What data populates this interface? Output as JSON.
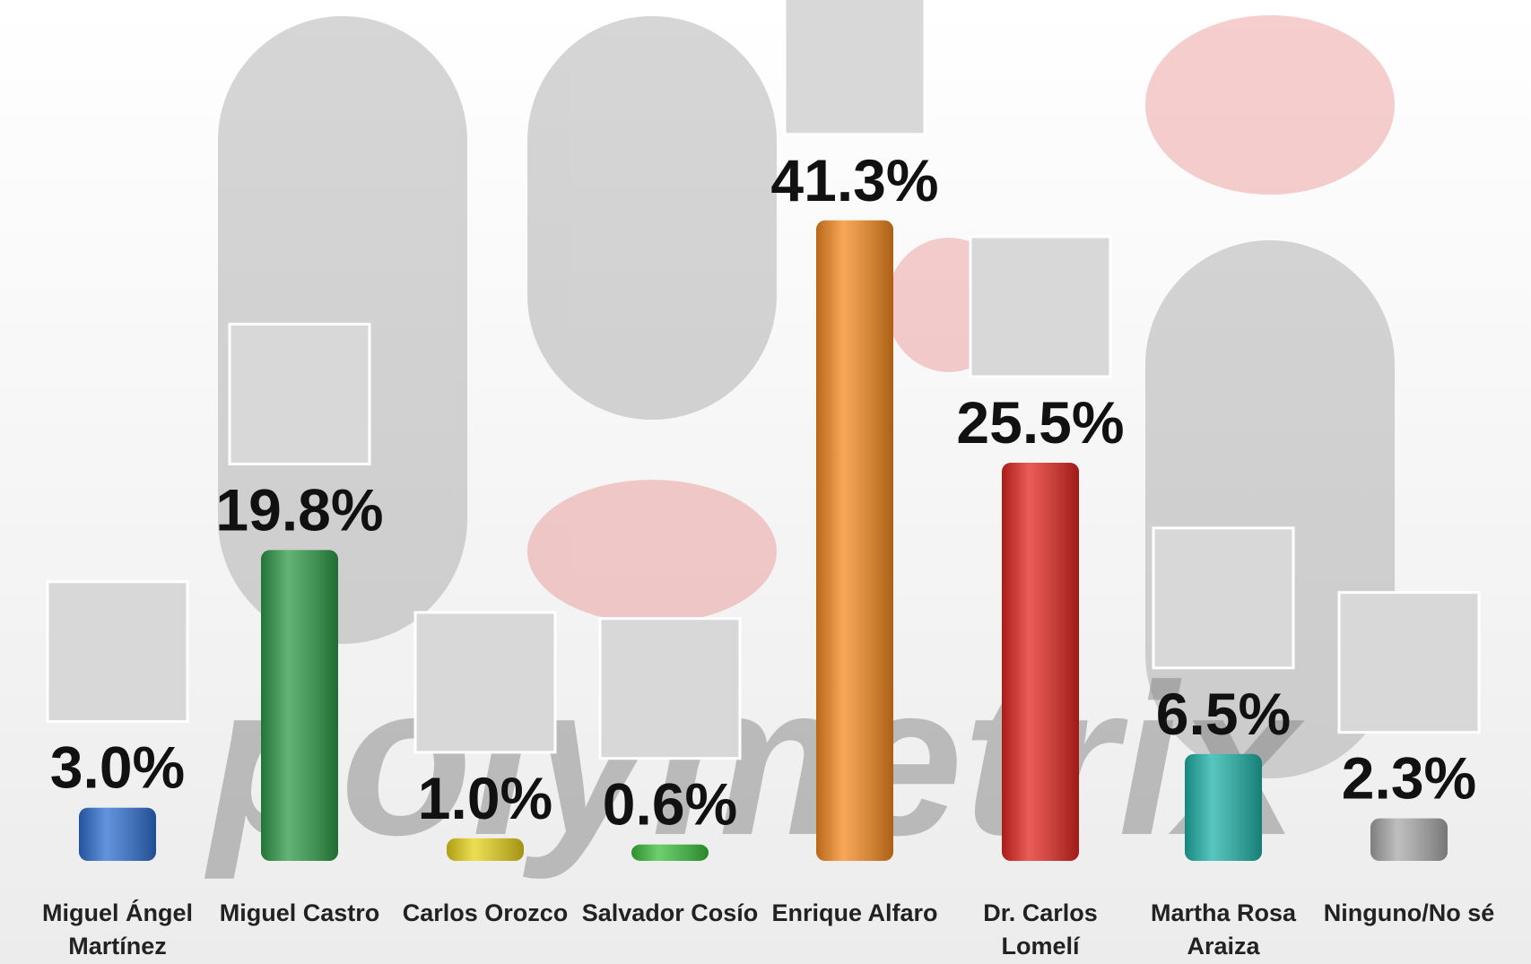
{
  "chart_data": {
    "type": "bar",
    "watermark": "polymetrix",
    "categories": [
      "Miguel Ángel Martínez",
      "Miguel Castro",
      "Carlos Orozco",
      "Salvador Cosío",
      "Enrique Alfaro",
      "Dr. Carlos Lomelí",
      "Martha Rosa Araiza",
      "Ninguno/No sé"
    ],
    "values": [
      3.0,
      19.8,
      1.0,
      0.6,
      41.3,
      25.5,
      6.5,
      2.3
    ],
    "value_labels": [
      "3.0%",
      "19.8%",
      "1.0%",
      "0.6%",
      "41.3%",
      "25.5%",
      "6.5%",
      "2.3%"
    ],
    "colors": [
      "#2f6fd0",
      "#2e9a47",
      "#e6d21a",
      "#3bbf3b",
      "#f58a1f",
      "#e3261f",
      "#1fb3a8",
      "#a9a9a9"
    ]
  }
}
